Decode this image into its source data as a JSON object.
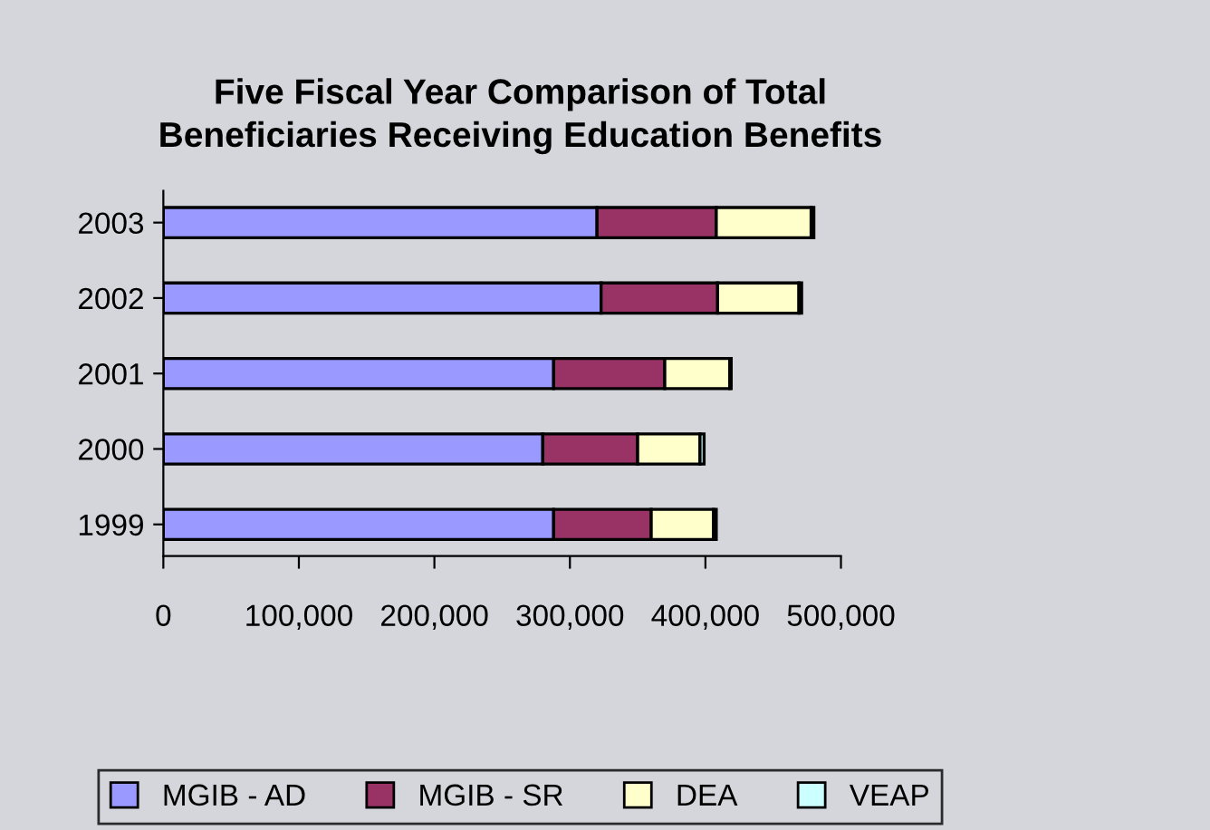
{
  "chart_data": {
    "type": "bar",
    "orientation": "horizontal",
    "stacked": true,
    "title": "Five Fiscal Year Comparison of Total\nBeneficiaries Receiving Education Benefits",
    "categories": [
      "2003",
      "2002",
      "2001",
      "2000",
      "1999"
    ],
    "series": [
      {
        "name": "MGIB - AD",
        "color": "#9999ff",
        "values": [
          320000,
          323000,
          288000,
          280000,
          288000
        ]
      },
      {
        "name": "MGIB - SR",
        "color": "#993366",
        "values": [
          88000,
          86000,
          82000,
          70000,
          72000
        ]
      },
      {
        "name": "DEA",
        "color": "#ffffcc",
        "values": [
          70000,
          60000,
          48000,
          46000,
          46000
        ]
      },
      {
        "name": "VEAP",
        "color": "#ccffff",
        "values": [
          2000,
          2000,
          1000,
          3000,
          2000
        ]
      }
    ],
    "xlim": [
      0,
      500000
    ],
    "xticks": [
      {
        "value": 0,
        "label": "0"
      },
      {
        "value": 100000,
        "label": "100,000"
      },
      {
        "value": 200000,
        "label": "200,000"
      },
      {
        "value": 300000,
        "label": "300,000"
      },
      {
        "value": 400000,
        "label": "400,000"
      },
      {
        "value": 500000,
        "label": "500,000"
      }
    ],
    "grid": false,
    "legend": "bottom"
  }
}
